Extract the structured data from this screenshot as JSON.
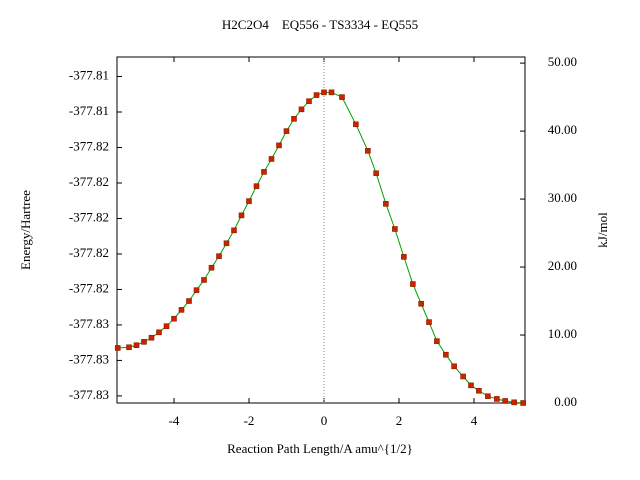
{
  "chart_data": {
    "type": "line",
    "title": "H2C2O4    EQ556 - TS3334 - EQ555",
    "xlabel": "Reaction Path Length/A amu^{1/2}",
    "ylabel": "Energy/Hartree",
    "y2label": "kJ/mol",
    "xlim": [
      -5.52,
      5.36
    ],
    "xticks": [
      -4,
      -2,
      0,
      2,
      4
    ],
    "ylim": [
      -377.8314,
      -377.8119
    ],
    "yticks": [
      {
        "value": -377.831,
        "label": "-377.83"
      },
      {
        "value": -377.829,
        "label": "-377.83"
      },
      {
        "value": -377.827,
        "label": "-377.83"
      },
      {
        "value": -377.825,
        "label": "-377.82"
      },
      {
        "value": -377.823,
        "label": "-377.82"
      },
      {
        "value": -377.821,
        "label": "-377.82"
      },
      {
        "value": -377.819,
        "label": "-377.82"
      },
      {
        "value": -377.817,
        "label": "-377.82"
      },
      {
        "value": -377.815,
        "label": "-377.81"
      },
      {
        "value": -377.813,
        "label": "-377.81"
      }
    ],
    "y2lim": [
      0,
      50.9
    ],
    "y2ticks": [
      {
        "value": 0,
        "label": "0.00"
      },
      {
        "value": 10,
        "label": "10.00"
      },
      {
        "value": 20,
        "label": "20.00"
      },
      {
        "value": 30,
        "label": "30.00"
      },
      {
        "value": 40,
        "label": "40.00"
      },
      {
        "value": 50,
        "label": "50.00"
      }
    ],
    "vline_x": 0,
    "series": [
      {
        "axis": "y2",
        "color": "#00a000",
        "marker_color": "#cc2200",
        "x": [
          -5.5,
          -5.2,
          -5.0,
          -4.8,
          -4.6,
          -4.4,
          -4.2,
          -4.0,
          -3.8,
          -3.6,
          -3.4,
          -3.2,
          -3.0,
          -2.8,
          -2.6,
          -2.4,
          -2.2,
          -2.0,
          -1.8,
          -1.6,
          -1.4,
          -1.2,
          -1.0,
          -0.8,
          -0.6,
          -0.4,
          -0.2,
          0,
          0.2,
          0.48,
          0.85,
          1.17,
          1.39,
          1.65,
          1.89,
          2.13,
          2.37,
          2.59,
          2.8,
          3.01,
          3.25,
          3.47,
          3.71,
          3.92,
          4.13,
          4.37,
          4.61,
          4.83,
          5.07,
          5.31
        ],
        "values": [
          8.1,
          8.2,
          8.5,
          9.0,
          9.6,
          10.4,
          11.3,
          12.4,
          13.7,
          15.0,
          16.6,
          18.1,
          19.9,
          21.6,
          23.5,
          25.4,
          27.6,
          29.7,
          31.9,
          34.0,
          35.9,
          37.9,
          40.0,
          41.8,
          43.2,
          44.4,
          45.3,
          45.7,
          45.7,
          45.0,
          41.0,
          37.1,
          33.8,
          29.3,
          25.6,
          21.5,
          17.5,
          14.6,
          11.9,
          9.1,
          7.1,
          5.4,
          3.9,
          2.6,
          1.8,
          1.0,
          0.6,
          0.3,
          0.1,
          0.0
        ]
      }
    ]
  }
}
